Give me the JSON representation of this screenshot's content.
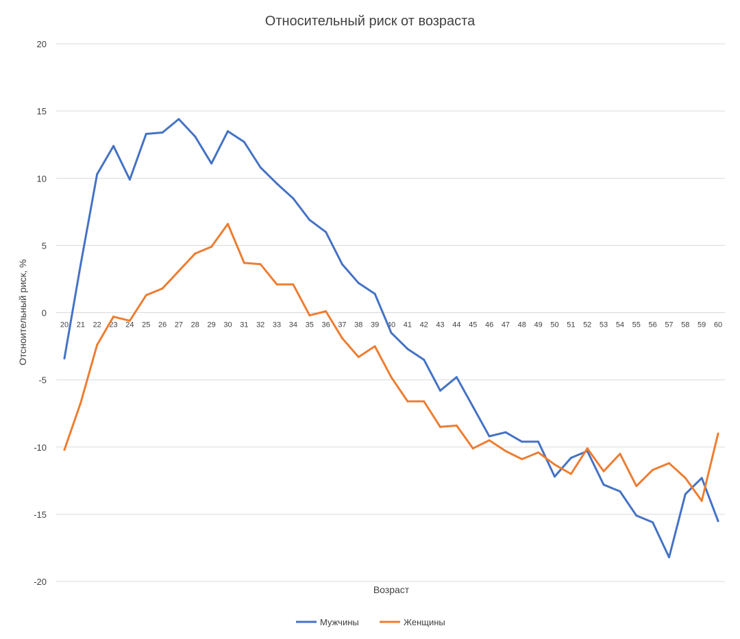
{
  "chart_data": {
    "type": "line",
    "title": "Относительный риск от возраста",
    "xlabel": "Возраст",
    "ylabel": "Отсноительный риск, %",
    "ylim": [
      -20,
      20
    ],
    "yticks": [
      20,
      15,
      10,
      5,
      0,
      -5,
      -10,
      -15,
      -20
    ],
    "grid": true,
    "legend": "bottom",
    "categories": [
      "20",
      "21",
      "22",
      "23",
      "24",
      "25",
      "26",
      "27",
      "28",
      "29",
      "30",
      "31",
      "32",
      "33",
      "34",
      "35",
      "36",
      "37",
      "38",
      "39",
      "40",
      "41",
      "42",
      "43",
      "44",
      "45",
      "46",
      "47",
      "48",
      "49",
      "50",
      "51",
      "52",
      "53",
      "54",
      "55",
      "56",
      "57",
      "58",
      "59",
      "60"
    ],
    "series": [
      {
        "name": "Мужчины",
        "color": "#4472C4",
        "values": [
          -3.4,
          3.6,
          10.3,
          12.4,
          9.9,
          13.3,
          13.4,
          14.4,
          13.1,
          11.1,
          13.5,
          12.7,
          10.8,
          9.6,
          8.5,
          6.9,
          6.0,
          3.6,
          2.2,
          1.4,
          -1.5,
          -2.7,
          -3.5,
          -5.8,
          -4.8,
          -7.0,
          -9.2,
          -8.9,
          -9.6,
          -9.6,
          -12.2,
          -10.8,
          -10.3,
          -12.8,
          -13.3,
          -15.1,
          -15.6,
          -18.2,
          -13.5,
          -12.3,
          -15.5
        ]
      },
      {
        "name": "Женщины",
        "color": "#ED7D31",
        "values": [
          -10.2,
          -6.7,
          -2.4,
          -0.3,
          -0.6,
          1.3,
          1.8,
          3.1,
          4.4,
          4.9,
          6.6,
          3.7,
          3.6,
          2.1,
          2.1,
          -0.2,
          0.1,
          -1.9,
          -3.3,
          -2.5,
          -4.8,
          -6.6,
          -6.6,
          -8.5,
          -8.4,
          -10.1,
          -9.5,
          -10.3,
          -10.9,
          -10.4,
          -11.3,
          -12.0,
          -10.1,
          -11.8,
          -10.5,
          -12.9,
          -11.7,
          -11.2,
          -12.3,
          -14.0,
          -9.0
        ]
      }
    ]
  }
}
